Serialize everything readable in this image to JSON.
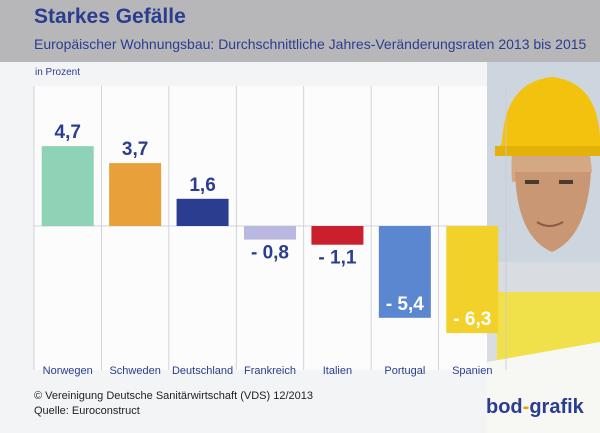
{
  "header": {
    "title": "Starkes Gefälle",
    "subtitle": "Europäischer Wohnungsbau: Durchschnittliche Jahres-Veränderungsraten 2013 bis 2015"
  },
  "unit_label": "in Prozent",
  "footer": {
    "copyright": "© Vereinigung Deutsche Sanitärwirtschaft (VDS)  12/2013",
    "source": "Quelle: Euroconstruct"
  },
  "logo": {
    "left": "bod",
    "dash": "-",
    "right": "grafik"
  },
  "colors": {
    "title": "#2a3d8f",
    "Norwegen": "#8fd3b6",
    "Schweden": "#e8a13a",
    "Deutschland": "#2a3d8f",
    "Frankreich": "#b8b8e0",
    "Italien": "#cc1f2e",
    "Portugal": "#5b86d0",
    "Spanien": "#f2d22a"
  },
  "chart_data": {
    "type": "bar",
    "categories": [
      "Norwegen",
      "Schweden",
      "Deutschland",
      "Frankreich",
      "Italien",
      "Portugal",
      "Spanien"
    ],
    "values": [
      4.7,
      3.7,
      1.6,
      -0.8,
      -1.1,
      -5.4,
      -6.3
    ],
    "data_labels": [
      "4,7",
      "3,7",
      "1,6",
      "- 0,8",
      "- 1,1",
      "- 5,4",
      "- 6,3"
    ],
    "title": "Starkes Gefälle",
    "ylabel": "in Prozent",
    "ylim": [
      -6.3,
      6.2
    ]
  }
}
